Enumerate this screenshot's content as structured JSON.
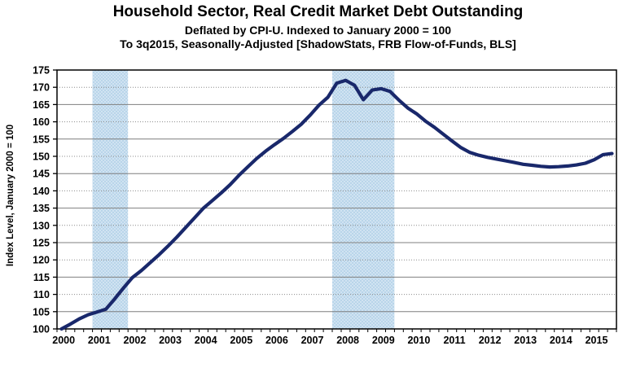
{
  "chart_data": {
    "type": "line",
    "title": "Household Sector, Real Credit Market Debt Outstanding",
    "subtitle1": "Deflated by CPI-U. Indexed to January 2000 = 100",
    "subtitle2": "To 3q2015, Seasonally-Adjusted [ShadowStats, FRB Flow-of-Funds, BLS]",
    "ylabel": "Index Level, January 2000 = 100",
    "ylim": [
      100,
      175
    ],
    "y_ticks": [
      100,
      105,
      110,
      115,
      120,
      125,
      130,
      135,
      140,
      145,
      150,
      155,
      160,
      165,
      170,
      175
    ],
    "x_years": [
      2000,
      2001,
      2002,
      2003,
      2004,
      2005,
      2006,
      2007,
      2008,
      2009,
      2010,
      2011,
      2012,
      2013,
      2014,
      2015
    ],
    "x_frequency": "quarterly",
    "x_start": "2000Q1",
    "x_end": "2015Q3",
    "grid": "horizontal, alternating solid and dotted every 5 units",
    "legend": "none",
    "values": [
      100.0,
      101.4,
      102.9,
      104.1,
      104.9,
      105.7,
      108.7,
      111.9,
      114.9,
      116.9,
      119.2,
      121.5,
      124.0,
      126.6,
      129.4,
      132.2,
      135.0,
      137.2,
      139.4,
      141.8,
      144.5,
      147.0,
      149.4,
      151.5,
      153.4,
      155.2,
      157.2,
      159.3,
      161.9,
      164.8,
      167.1,
      171.2,
      172.0,
      170.6,
      166.4,
      169.2,
      169.6,
      168.8,
      166.3,
      164.0,
      162.3,
      160.2,
      158.4,
      156.4,
      154.4,
      152.5,
      151.1,
      150.3,
      149.7,
      149.2,
      148.7,
      148.2,
      147.7,
      147.4,
      147.1,
      146.9,
      147.0,
      147.2,
      147.5,
      148.0,
      149.0,
      150.5,
      150.8
    ],
    "recession_bands": [
      {
        "start_index": 4,
        "end_index": 7,
        "start_q": "2001Q1",
        "end_q": "2001Q4"
      },
      {
        "start_index": 31,
        "end_index": 37,
        "start_q": "2007Q4",
        "end_q": "2009Q2"
      }
    ],
    "colors": {
      "line": "#19286b",
      "band": "#b9d5ea",
      "gridline_solid": "#7f7f7f",
      "gridline_dotted": "#8c8c8c",
      "axis": "#000000",
      "background": "#ffffff"
    }
  }
}
